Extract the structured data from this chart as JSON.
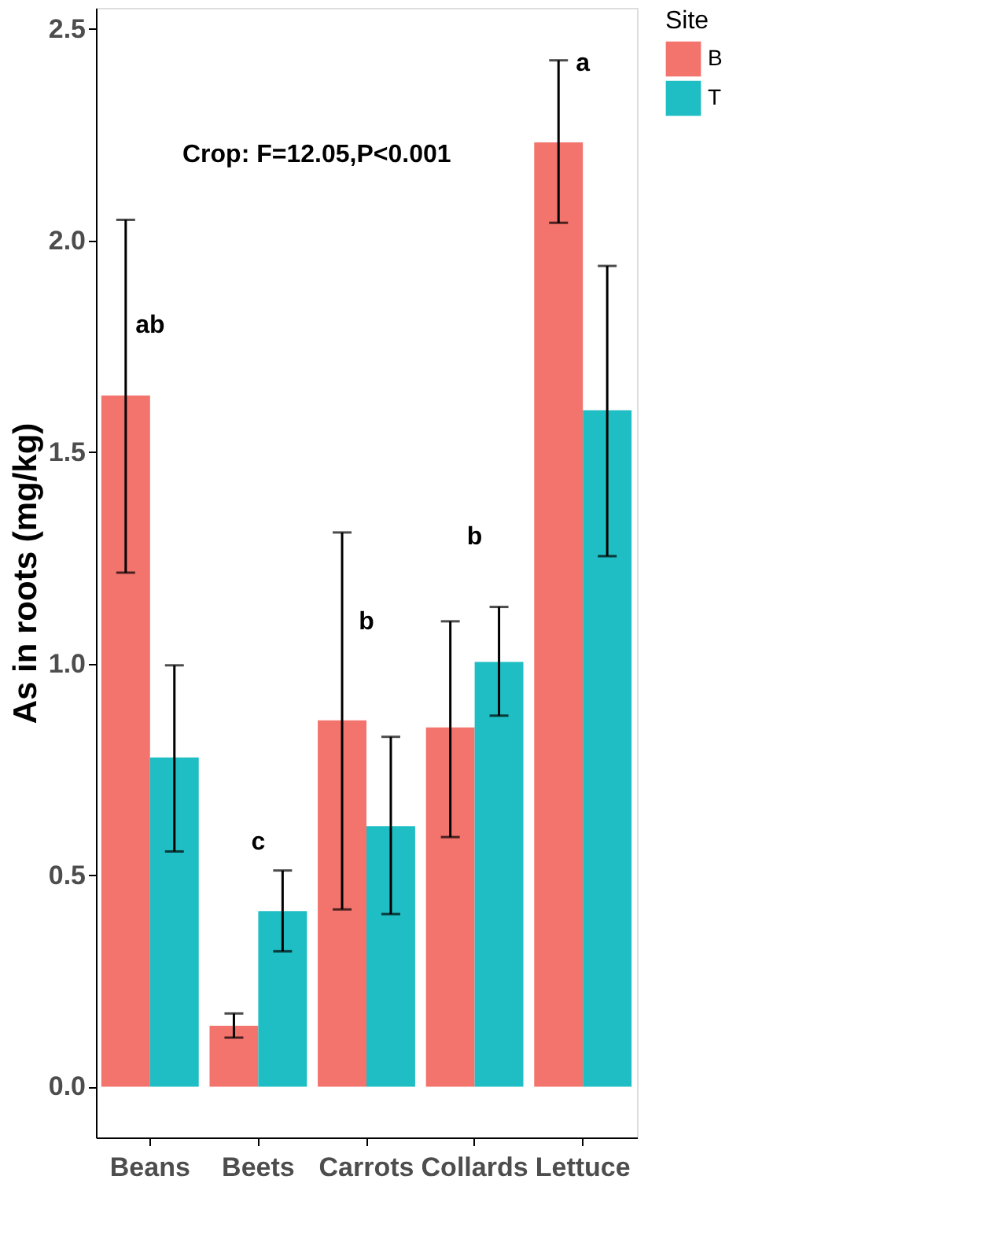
{
  "chart_data": {
    "type": "bar",
    "ylabel": "As in roots (mg/kg)",
    "legend_title": "Site",
    "categories": [
      "Beans",
      "Beets",
      "Carrots",
      "Collards",
      "Lettuce"
    ],
    "series": [
      {
        "name": "B",
        "color": "#f3736d",
        "values": [
          1.634,
          0.144,
          0.866,
          0.849,
          2.232
        ],
        "errors": [
          [
            1.215,
            2.049
          ],
          [
            0.116,
            0.173
          ],
          [
            0.419,
            1.31
          ],
          [
            0.59,
            1.1
          ],
          [
            2.042,
            2.426
          ]
        ]
      },
      {
        "name": "T",
        "color": "#1fbec4",
        "values": [
          0.778,
          0.415,
          0.616,
          1.004,
          1.599
        ],
        "errors": [
          [
            0.556,
            0.996
          ],
          [
            0.32,
            0.511
          ],
          [
            0.408,
            0.827
          ],
          [
            0.877,
            1.134
          ],
          [
            1.254,
            1.94
          ]
        ]
      }
    ],
    "ylim": [
      -0.12,
      2.55
    ],
    "yticks": [
      {
        "value": 0,
        "label": "0.0"
      },
      {
        "value": 0.5,
        "label": "0.5"
      },
      {
        "value": 1,
        "label": "1.0"
      },
      {
        "value": 1.5,
        "label": "1.5"
      },
      {
        "value": 2,
        "label": "2.0"
      },
      {
        "value": 2.5,
        "label": "2.5"
      }
    ],
    "annotations": [
      "Crop: F=12.05,P<0.001",
      "ab",
      "c",
      "b",
      "b",
      "a"
    ],
    "grid": false,
    "legend": "right"
  }
}
